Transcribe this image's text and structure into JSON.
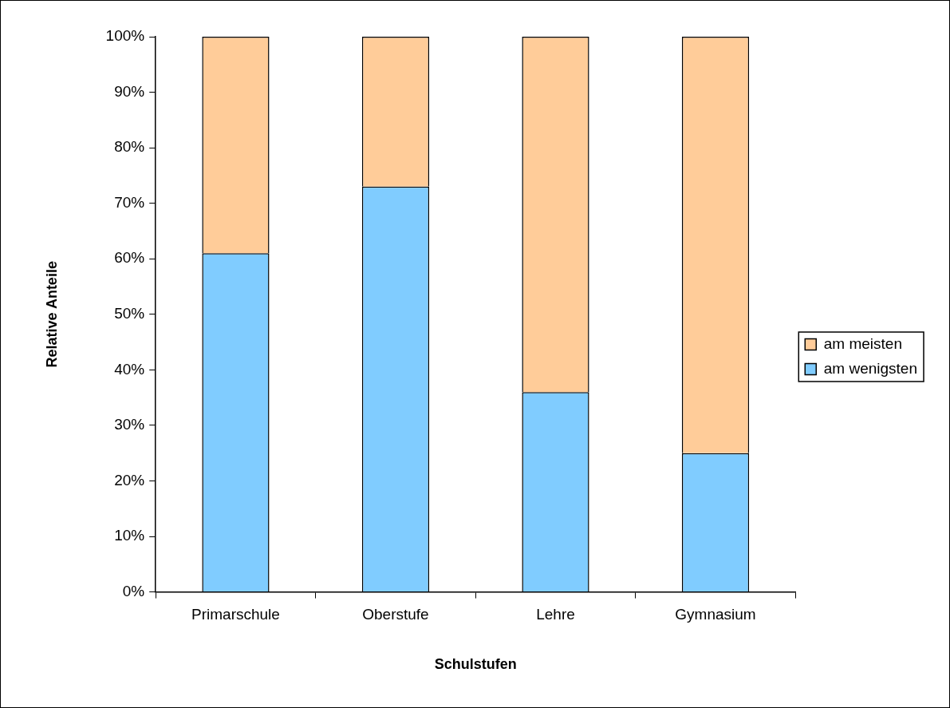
{
  "chart_data": {
    "type": "bar",
    "stacked": true,
    "xlabel": "Schulstufen",
    "ylabel": "Relative Anteile",
    "categories": [
      "Primarschule",
      "Oberstufe",
      "Lehre",
      "Gymnasium"
    ],
    "series": [
      {
        "name": "am wenigsten",
        "color": "#80ccff",
        "values": [
          61,
          73,
          36,
          25
        ]
      },
      {
        "name": "am meisten",
        "color": "#ffcc99",
        "values": [
          39,
          27,
          64,
          75
        ]
      }
    ],
    "ylim": [
      0,
      100
    ],
    "yticks": [
      {
        "value": 0,
        "label": "0%"
      },
      {
        "value": 10,
        "label": "10%"
      },
      {
        "value": 20,
        "label": "20%"
      },
      {
        "value": 30,
        "label": "30%"
      },
      {
        "value": 40,
        "label": "40%"
      },
      {
        "value": 50,
        "label": "50%"
      },
      {
        "value": 60,
        "label": "60%"
      },
      {
        "value": 70,
        "label": "70%"
      },
      {
        "value": 80,
        "label": "80%"
      },
      {
        "value": 90,
        "label": "90%"
      },
      {
        "value": 100,
        "label": "100%"
      }
    ],
    "grid": false,
    "legend": "right"
  }
}
